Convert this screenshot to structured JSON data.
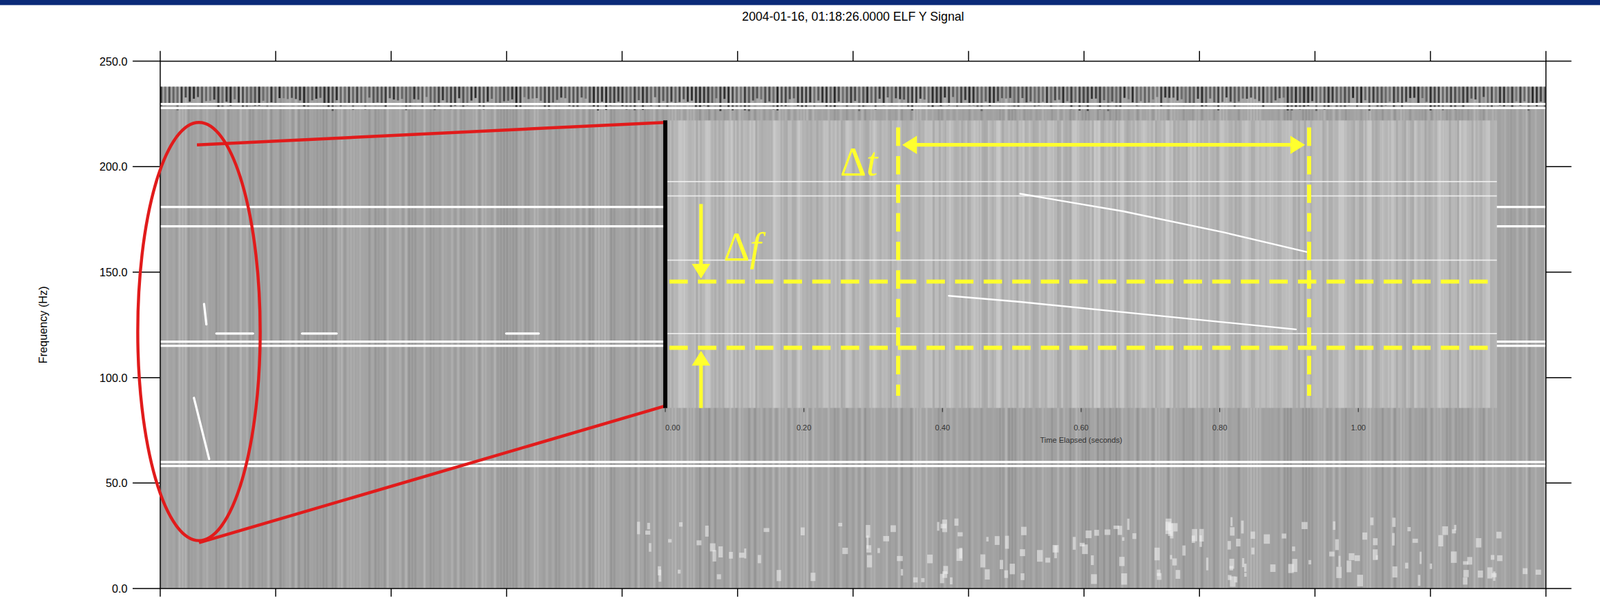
{
  "chart_data": {
    "type": "spectrogram",
    "title": "2004-01-16, 01:18:26.0000  ELF Y Signal",
    "y_label": "Frequency (Hz)",
    "xlim": [
      0,
      6
    ],
    "xticks": [
      0,
      0.5,
      1,
      1.5,
      2,
      2.5,
      3,
      3.5,
      4,
      4.5,
      5,
      5.5,
      6
    ],
    "tick_labels": "y",
    "ylim": [
      0,
      250
    ],
    "yticks": [
      {
        "value": 0,
        "label": "0.0"
      },
      {
        "value": 50,
        "label": "50.0"
      },
      {
        "value": 100,
        "label": "100.0"
      },
      {
        "value": 150,
        "label": "150.0"
      },
      {
        "value": 200,
        "label": "200.0"
      },
      {
        "value": 250,
        "label": "250.0"
      }
    ],
    "tones": [
      229.7,
      227.8,
      180.9,
      171.7,
      117.0,
      115.1,
      60.0,
      58.1
    ],
    "series": [
      {
        "type": "line",
        "x": [
          0.19,
          0.2
        ],
        "values": [
          134.9,
          125.2
        ]
      },
      {
        "type": "line",
        "x": [
          0.146,
          0.212
        ],
        "values": [
          90.4,
          61.4
        ]
      },
      {
        "type": "line",
        "x": [
          0.243,
          0.402,
          null,
          0.614,
          0.764,
          null,
          1.498,
          1.639
        ],
        "values": [
          120.9,
          120.9,
          null,
          120.9,
          120.9,
          null,
          120.9,
          120.9
        ]
      }
    ],
    "inset": {
      "x_label": "Time Elapsed (seconds)",
      "xlim": [
        0,
        1.2
      ],
      "xticks": [
        {
          "value": 0,
          "label": "0.00"
        },
        {
          "value": 0.2,
          "label": "0.20"
        },
        {
          "value": 0.4,
          "label": "0.40"
        },
        {
          "value": 0.6,
          "label": "0.60"
        },
        {
          "value": 0.8,
          "label": "0.80"
        },
        {
          "value": 1.0,
          "label": "1.00"
        }
      ],
      "ylim": [
        20,
        210
      ],
      "tones": [
        169.6,
        160.1,
        117.7,
        69.2
      ],
      "series": [
        {
          "type": "line",
          "x": [
            0.512,
            0.66,
            0.807,
            0.925
          ],
          "values": [
            161.5,
            150.0,
            135.9,
            123.1
          ]
        },
        {
          "type": "line",
          "x": [
            0.409,
            0.512,
            0.66,
            0.807,
            0.91
          ],
          "values": [
            94.1,
            90.1,
            83.3,
            76.6,
            71.9
          ]
        }
      ],
      "annotations": [
        {
          "text": "Δt",
          "x": [
            0.336,
            0.929
          ]
        },
        {
          "text": "Δf",
          "y": [
            59.8,
            103.5
          ]
        }
      ]
    }
  }
}
